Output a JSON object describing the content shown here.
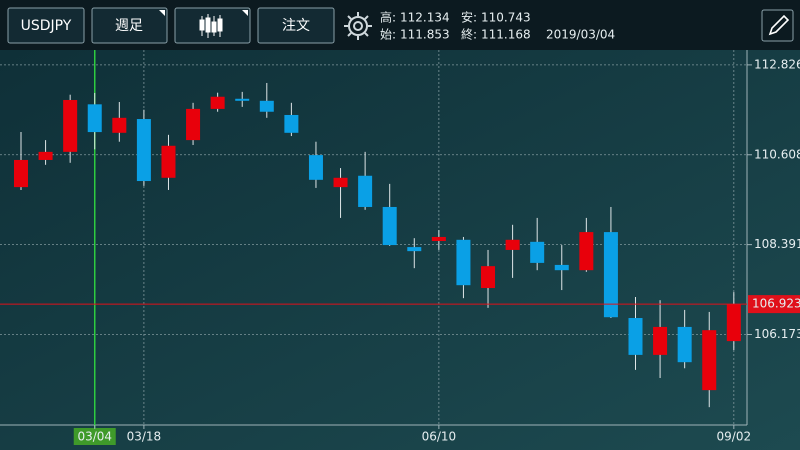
{
  "header": {
    "symbol": "USDJPY",
    "timeframe": "週足",
    "order": "注文",
    "labels": {
      "high": "高:",
      "low": "安:",
      "open": "始:",
      "close": "終:"
    },
    "date": "2019/03/04"
  },
  "chart_data": {
    "type": "candlestick",
    "categories": [
      null,
      null,
      null,
      "03/04",
      null,
      "03/18",
      null,
      null,
      null,
      null,
      null,
      null,
      null,
      null,
      null,
      null,
      null,
      "06/10",
      null,
      null,
      null,
      null,
      null,
      null,
      null,
      null,
      null,
      null,
      null,
      "09/02"
    ],
    "open": [
      109.81,
      110.48,
      110.68,
      111.853,
      111.15,
      111.49,
      110.04,
      110.97,
      111.74,
      111.99,
      111.94,
      111.59,
      110.6,
      109.81,
      110.09,
      109.32,
      108.33,
      108.48,
      108.51,
      107.32,
      108.26,
      108.46,
      107.89,
      107.76,
      108.7,
      106.58,
      105.67,
      106.36,
      104.8,
      106.01
    ],
    "high": [
      111.17,
      110.97,
      112.09,
      112.134,
      111.91,
      111.72,
      111.1,
      111.89,
      112.14,
      112.16,
      112.38,
      111.89,
      110.93,
      110.28,
      110.68,
      109.89,
      108.55,
      108.75,
      108.58,
      108.26,
      108.88,
      109.05,
      108.38,
      109.05,
      109.32,
      107.1,
      107.02,
      106.78,
      106.73,
      107.22
    ],
    "low": [
      109.74,
      110.36,
      110.41,
      110.743,
      110.93,
      109.84,
      109.74,
      110.85,
      111.67,
      111.79,
      111.52,
      111.07,
      109.79,
      109.05,
      109.25,
      108.36,
      107.81,
      108.26,
      107.07,
      106.83,
      107.57,
      107.76,
      107.27,
      107.72,
      106.58,
      105.3,
      105.1,
      105.34,
      104.38,
      105.79
    ],
    "close": [
      110.48,
      110.68,
      111.96,
      111.168,
      111.52,
      109.96,
      110.83,
      111.74,
      112.04,
      111.94,
      111.67,
      111.15,
      109.99,
      110.04,
      109.32,
      108.38,
      108.23,
      108.58,
      107.39,
      107.86,
      108.51,
      107.94,
      107.76,
      108.7,
      106.6,
      105.67,
      106.36,
      105.49,
      106.28,
      106.923
    ],
    "up_color": "#e8000b",
    "down_color": "#0aa0e6",
    "ylim": [
      103.94,
      113.07
    ],
    "yticks": [
      106.173,
      108.391,
      110.608,
      112.826
    ],
    "grid": true,
    "current_price": 106.923,
    "current_price_color": "#e0101a"
  }
}
